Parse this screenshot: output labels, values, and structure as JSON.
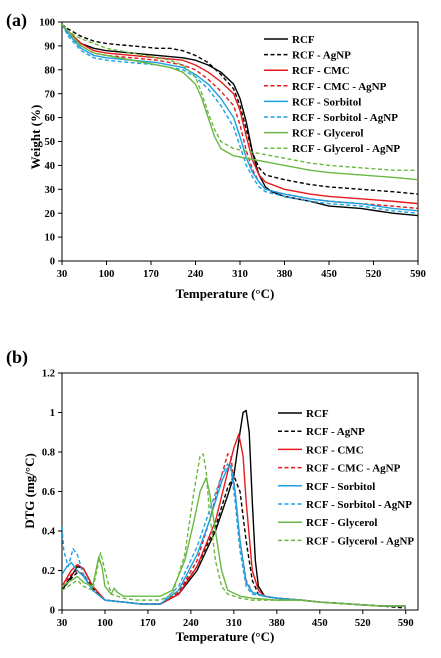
{
  "chart_data": [
    {
      "type": "line",
      "panel_label": "(a)",
      "xlabel": "Temperature (°C)",
      "ylabel": "Weight (%)",
      "xlim": [
        30,
        590
      ],
      "ylim": [
        0,
        100
      ],
      "xticks": [
        30,
        100,
        170,
        240,
        310,
        380,
        450,
        520,
        590
      ],
      "yticks": [
        0,
        10,
        20,
        30,
        40,
        50,
        60,
        70,
        80,
        90,
        100
      ],
      "legend_position": "right",
      "series": [
        {
          "name": "RCF",
          "color": "#000000",
          "dash": "solid",
          "x": [
            30,
            40,
            60,
            80,
            100,
            140,
            180,
            220,
            240,
            260,
            280,
            300,
            310,
            320,
            330,
            340,
            350,
            360,
            380,
            420,
            450,
            500,
            550,
            590
          ],
          "y": [
            99,
            96,
            91,
            89,
            88,
            87,
            86,
            85,
            84,
            82,
            79,
            74,
            68,
            58,
            45,
            36,
            31,
            29,
            27,
            25,
            23,
            22,
            20,
            19
          ]
        },
        {
          "name": "RCF - AgNP",
          "color": "#000000",
          "dash": "dashed",
          "x": [
            30,
            40,
            60,
            80,
            100,
            140,
            180,
            200,
            220,
            240,
            260,
            280,
            300,
            310,
            320,
            330,
            340,
            350,
            380,
            420,
            450,
            500,
            550,
            590
          ],
          "y": [
            99,
            97,
            94,
            92,
            91,
            90,
            89,
            89,
            88,
            86,
            83,
            78,
            72,
            65,
            55,
            45,
            39,
            36,
            34,
            32,
            31,
            30,
            29,
            28
          ]
        },
        {
          "name": "RCF - CMC",
          "color": "#e41a1c",
          "dash": "solid",
          "x": [
            30,
            40,
            60,
            80,
            100,
            140,
            180,
            220,
            240,
            260,
            280,
            300,
            310,
            320,
            330,
            340,
            350,
            380,
            420,
            450,
            500,
            550,
            590
          ],
          "y": [
            99,
            96,
            91,
            88,
            87,
            86,
            85,
            84,
            82,
            79,
            75,
            70,
            63,
            52,
            42,
            36,
            33,
            30,
            28,
            27,
            26,
            25,
            24
          ]
        },
        {
          "name": "RCF - CMC - AgNP",
          "color": "#e41a1c",
          "dash": "dashed",
          "x": [
            30,
            40,
            60,
            80,
            100,
            140,
            180,
            220,
            240,
            260,
            280,
            300,
            310,
            320,
            330,
            340,
            350,
            380,
            420,
            450,
            500,
            550,
            590
          ],
          "y": [
            99,
            95,
            90,
            87,
            86,
            85,
            84,
            82,
            80,
            76,
            71,
            65,
            57,
            46,
            38,
            33,
            30,
            28,
            26,
            25,
            24,
            23,
            22
          ]
        },
        {
          "name": "RCF - Sorbitol",
          "color": "#1da1e0",
          "dash": "solid",
          "x": [
            30,
            40,
            60,
            80,
            100,
            140,
            180,
            220,
            240,
            260,
            280,
            300,
            310,
            320,
            330,
            340,
            350,
            380,
            420,
            450,
            500,
            550,
            590
          ],
          "y": [
            99,
            95,
            89,
            86,
            85,
            84,
            83,
            81,
            78,
            74,
            68,
            60,
            52,
            43,
            37,
            33,
            30,
            28,
            26,
            25,
            24,
            22,
            21
          ]
        },
        {
          "name": "RCF - Sorbitol - AgNP",
          "color": "#1da1e0",
          "dash": "dashed",
          "x": [
            30,
            40,
            60,
            80,
            100,
            140,
            180,
            220,
            240,
            260,
            280,
            300,
            310,
            320,
            330,
            340,
            350,
            380,
            420,
            450,
            500,
            550,
            590
          ],
          "y": [
            99,
            94,
            88,
            85,
            84,
            83,
            82,
            80,
            77,
            72,
            65,
            56,
            48,
            40,
            35,
            31,
            29,
            27,
            25,
            24,
            23,
            21,
            20
          ]
        },
        {
          "name": "RCF - Glycerol",
          "color": "#6ab843",
          "dash": "solid",
          "x": [
            30,
            40,
            60,
            80,
            100,
            140,
            180,
            200,
            220,
            240,
            250,
            260,
            270,
            280,
            300,
            320,
            340,
            380,
            420,
            450,
            500,
            550,
            590
          ],
          "y": [
            99,
            96,
            90,
            87,
            86,
            84,
            82,
            81,
            79,
            74,
            68,
            60,
            52,
            47,
            44,
            43,
            42,
            40,
            38,
            37,
            36,
            35,
            34
          ]
        },
        {
          "name": "RCF - Glycerol - AgNP",
          "color": "#6ab843",
          "dash": "dashed",
          "x": [
            30,
            40,
            60,
            80,
            100,
            140,
            180,
            200,
            220,
            240,
            250,
            260,
            270,
            280,
            300,
            320,
            340,
            380,
            420,
            450,
            500,
            550,
            590
          ],
          "y": [
            99,
            96,
            93,
            91,
            89,
            87,
            85,
            84,
            82,
            77,
            70,
            62,
            55,
            50,
            47,
            46,
            45,
            43,
            41,
            40,
            39,
            38,
            38
          ]
        }
      ]
    },
    {
      "type": "line",
      "panel_label": "(b)",
      "xlabel": "Temperature (°C)",
      "ylabel": "DTG (mg/°C)",
      "xlim": [
        30,
        610
      ],
      "ylim": [
        0,
        1.2
      ],
      "xticks": [
        30,
        100,
        170,
        240,
        310,
        380,
        450,
        520,
        590
      ],
      "yticks": [
        "0",
        "0.2",
        "0.4",
        "0.6",
        "0.8",
        "1",
        "1.2"
      ],
      "legend_position": "right",
      "series": [
        {
          "name": "RCF",
          "color": "#000000",
          "dash": "solid",
          "x": [
            30,
            45,
            55,
            65,
            80,
            100,
            130,
            160,
            190,
            220,
            250,
            280,
            300,
            310,
            320,
            325,
            330,
            335,
            340,
            345,
            350,
            360,
            380,
            420,
            450,
            500,
            550,
            590
          ],
          "y": [
            0.1,
            0.17,
            0.22,
            0.21,
            0.12,
            0.05,
            0.04,
            0.03,
            0.03,
            0.08,
            0.2,
            0.4,
            0.58,
            0.68,
            0.9,
            1.0,
            1.01,
            0.9,
            0.55,
            0.25,
            0.12,
            0.07,
            0.06,
            0.05,
            0.04,
            0.03,
            0.02,
            0.02
          ]
        },
        {
          "name": "RCF - AgNP",
          "color": "#000000",
          "dash": "dashed",
          "x": [
            30,
            45,
            55,
            65,
            80,
            100,
            130,
            160,
            190,
            220,
            250,
            280,
            300,
            310,
            320,
            330,
            340,
            350,
            360,
            380,
            420,
            450,
            500,
            550,
            590
          ],
          "y": [
            0.1,
            0.16,
            0.19,
            0.18,
            0.11,
            0.05,
            0.04,
            0.03,
            0.03,
            0.09,
            0.22,
            0.42,
            0.62,
            0.68,
            0.6,
            0.35,
            0.15,
            0.08,
            0.07,
            0.06,
            0.05,
            0.04,
            0.03,
            0.02,
            0.01
          ]
        },
        {
          "name": "RCF - CMC",
          "color": "#e41a1c",
          "dash": "solid",
          "x": [
            30,
            45,
            55,
            65,
            80,
            100,
            130,
            160,
            190,
            220,
            250,
            280,
            300,
            310,
            318,
            325,
            330,
            340,
            350,
            360,
            380,
            420,
            450,
            500,
            550,
            590
          ],
          "y": [
            0.12,
            0.2,
            0.23,
            0.21,
            0.12,
            0.05,
            0.04,
            0.03,
            0.03,
            0.08,
            0.22,
            0.45,
            0.7,
            0.82,
            0.89,
            0.78,
            0.55,
            0.2,
            0.1,
            0.07,
            0.06,
            0.05,
            0.04,
            0.03,
            0.02,
            0.02
          ]
        },
        {
          "name": "RCF - CMC - AgNP",
          "color": "#e41a1c",
          "dash": "dashed",
          "x": [
            30,
            45,
            55,
            65,
            80,
            100,
            130,
            160,
            190,
            220,
            250,
            270,
            290,
            300,
            305,
            312,
            320,
            330,
            340,
            360,
            380,
            420,
            450,
            500,
            550,
            590
          ],
          "y": [
            0.12,
            0.18,
            0.2,
            0.18,
            0.1,
            0.05,
            0.04,
            0.03,
            0.03,
            0.09,
            0.25,
            0.45,
            0.68,
            0.79,
            0.78,
            0.6,
            0.35,
            0.15,
            0.09,
            0.07,
            0.06,
            0.05,
            0.04,
            0.03,
            0.02,
            0.02
          ]
        },
        {
          "name": "RCF - Sorbitol",
          "color": "#1da1e0",
          "dash": "solid",
          "x": [
            30,
            38,
            45,
            55,
            65,
            80,
            100,
            130,
            160,
            190,
            220,
            250,
            270,
            290,
            300,
            305,
            312,
            320,
            330,
            340,
            360,
            380,
            420,
            450,
            500,
            550,
            590
          ],
          "y": [
            0.18,
            0.22,
            0.24,
            0.2,
            0.17,
            0.1,
            0.05,
            0.04,
            0.03,
            0.03,
            0.1,
            0.28,
            0.45,
            0.65,
            0.72,
            0.73,
            0.6,
            0.35,
            0.14,
            0.09,
            0.07,
            0.06,
            0.05,
            0.04,
            0.03,
            0.02,
            0.02
          ]
        },
        {
          "name": "RCF - Sorbitol - AgNP",
          "color": "#1da1e0",
          "dash": "dashed",
          "x": [
            30,
            33,
            40,
            48,
            55,
            65,
            80,
            100,
            130,
            160,
            190,
            220,
            250,
            270,
            290,
            300,
            305,
            312,
            320,
            330,
            340,
            360,
            380,
            420,
            450,
            500,
            550,
            590
          ],
          "y": [
            0.42,
            0.3,
            0.22,
            0.31,
            0.28,
            0.18,
            0.1,
            0.05,
            0.04,
            0.03,
            0.03,
            0.12,
            0.32,
            0.5,
            0.68,
            0.74,
            0.72,
            0.55,
            0.3,
            0.12,
            0.08,
            0.07,
            0.06,
            0.05,
            0.04,
            0.03,
            0.02,
            0.02
          ]
        },
        {
          "name": "RCF - Glycerol",
          "color": "#6ab843",
          "dash": "solid",
          "x": [
            30,
            45,
            55,
            65,
            80,
            90,
            95,
            100,
            110,
            115,
            120,
            130,
            150,
            170,
            190,
            210,
            230,
            245,
            255,
            265,
            270,
            280,
            290,
            300,
            320,
            340,
            380,
            420,
            450,
            500,
            550,
            590
          ],
          "y": [
            0.12,
            0.15,
            0.17,
            0.14,
            0.12,
            0.27,
            0.22,
            0.12,
            0.08,
            0.11,
            0.09,
            0.07,
            0.07,
            0.07,
            0.07,
            0.1,
            0.25,
            0.45,
            0.6,
            0.67,
            0.6,
            0.4,
            0.2,
            0.1,
            0.07,
            0.06,
            0.05,
            0.05,
            0.04,
            0.03,
            0.02,
            0.02
          ]
        },
        {
          "name": "RCF - Glycerol - AgNP",
          "color": "#6ab843",
          "dash": "dashed",
          "x": [
            30,
            45,
            55,
            65,
            80,
            88,
            93,
            100,
            110,
            130,
            150,
            170,
            190,
            210,
            230,
            245,
            255,
            260,
            265,
            270,
            280,
            290,
            300,
            320,
            340,
            380,
            420,
            450,
            500,
            550,
            590
          ],
          "y": [
            0.1,
            0.13,
            0.15,
            0.12,
            0.1,
            0.22,
            0.29,
            0.2,
            0.08,
            0.06,
            0.05,
            0.05,
            0.05,
            0.08,
            0.28,
            0.6,
            0.78,
            0.79,
            0.7,
            0.5,
            0.25,
            0.12,
            0.08,
            0.06,
            0.05,
            0.05,
            0.05,
            0.04,
            0.03,
            0.02,
            0.02
          ]
        }
      ]
    }
  ]
}
